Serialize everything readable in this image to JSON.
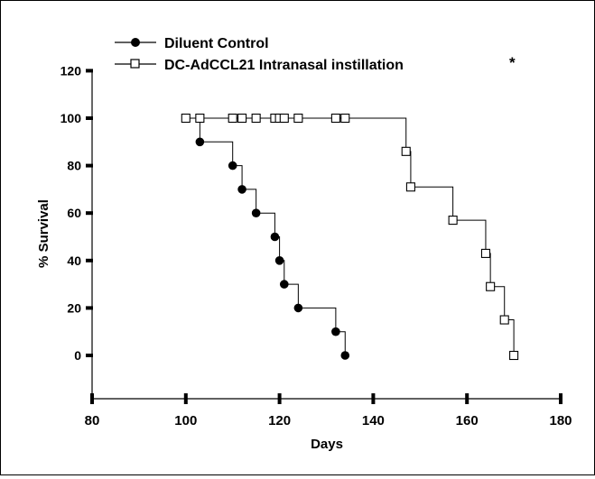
{
  "chart_data": {
    "type": "line",
    "subtype": "kaplan-meier step survival curve",
    "title": "",
    "xlabel": "Days",
    "ylabel": "% Survival",
    "xlim": [
      80,
      180
    ],
    "ylim": [
      -20,
      120
    ],
    "x_ticks": [
      80,
      100,
      120,
      140,
      160,
      180
    ],
    "x_tick_labels": [
      "80",
      "100",
      "120",
      "140",
      "160",
      "180"
    ],
    "y_ticks": [
      0,
      20,
      40,
      60,
      80,
      100,
      120
    ],
    "y_tick_labels": [
      "0",
      "20",
      "40",
      "60",
      "80",
      "100",
      "120"
    ],
    "grid": false,
    "legend_position": "top-left",
    "significance_marker": "*",
    "series": [
      {
        "name": "Diluent Control",
        "marker": "filled-circle",
        "color": "#000000",
        "steps": [
          [
            100,
            100
          ],
          [
            103,
            90
          ],
          [
            110,
            80
          ],
          [
            112,
            70
          ],
          [
            115,
            60
          ],
          [
            119,
            50
          ],
          [
            120,
            40
          ],
          [
            121,
            30
          ],
          [
            124,
            20
          ],
          [
            132,
            10
          ],
          [
            134,
            0
          ]
        ],
        "points": [
          [
            100,
            100
          ],
          [
            103,
            90
          ],
          [
            110,
            80
          ],
          [
            112,
            70
          ],
          [
            115,
            60
          ],
          [
            119,
            50
          ],
          [
            120,
            40
          ],
          [
            121,
            30
          ],
          [
            124,
            20
          ],
          [
            132,
            10
          ],
          [
            134,
            0
          ]
        ]
      },
      {
        "name": "DC-AdCCL21 Intranasal instillation",
        "marker": "open-square",
        "color": "#000000",
        "steps": [
          [
            100,
            100
          ],
          [
            147,
            86
          ],
          [
            148,
            71
          ],
          [
            157,
            57
          ],
          [
            164,
            43
          ],
          [
            165,
            29
          ],
          [
            168,
            15
          ],
          [
            170,
            0
          ]
        ],
        "points": [
          [
            100,
            100
          ],
          [
            103,
            100
          ],
          [
            110,
            100
          ],
          [
            112,
            100
          ],
          [
            115,
            100
          ],
          [
            119,
            100
          ],
          [
            120,
            100
          ],
          [
            121,
            100
          ],
          [
            124,
            100
          ],
          [
            132,
            100
          ],
          [
            134,
            100
          ],
          [
            147,
            86
          ],
          [
            148,
            71
          ],
          [
            157,
            57
          ],
          [
            164,
            43
          ],
          [
            165,
            29
          ],
          [
            168,
            15
          ],
          [
            170,
            0
          ]
        ]
      }
    ]
  }
}
